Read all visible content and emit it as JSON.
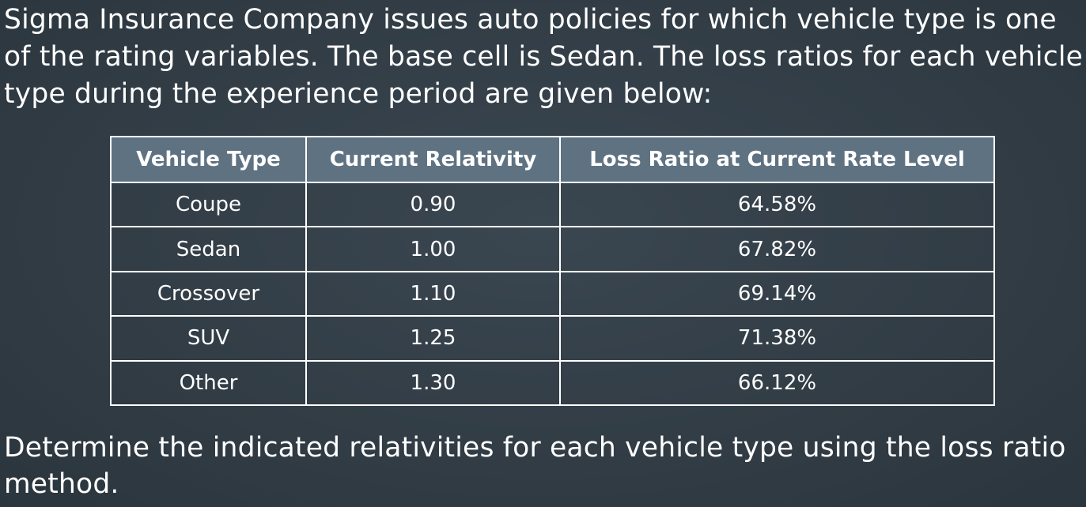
{
  "intro_text": "Sigma Insurance Company issues auto policies for which vehicle type is one of the rating variables. The base cell is Sedan. The loss ratios for each vehicle type during the experience period are given below:",
  "table": {
    "headers": [
      "Vehicle Type",
      "Current Relativity",
      "Loss Ratio at Current Rate Level"
    ],
    "rows": [
      [
        "Coupe",
        "0.90",
        "64.58%"
      ],
      [
        "Sedan",
        "1.00",
        "67.82%"
      ],
      [
        "Crossover",
        "1.10",
        "69.14%"
      ],
      [
        "SUV",
        "1.25",
        "71.38%"
      ],
      [
        "Other",
        "1.30",
        "66.12%"
      ]
    ]
  },
  "question_text": "Determine the indicated relativities for each vehicle type using the loss ratio method.",
  "colors": {
    "background": "#323d46",
    "header_fill": "#5e7282",
    "text": "#ffffff"
  }
}
